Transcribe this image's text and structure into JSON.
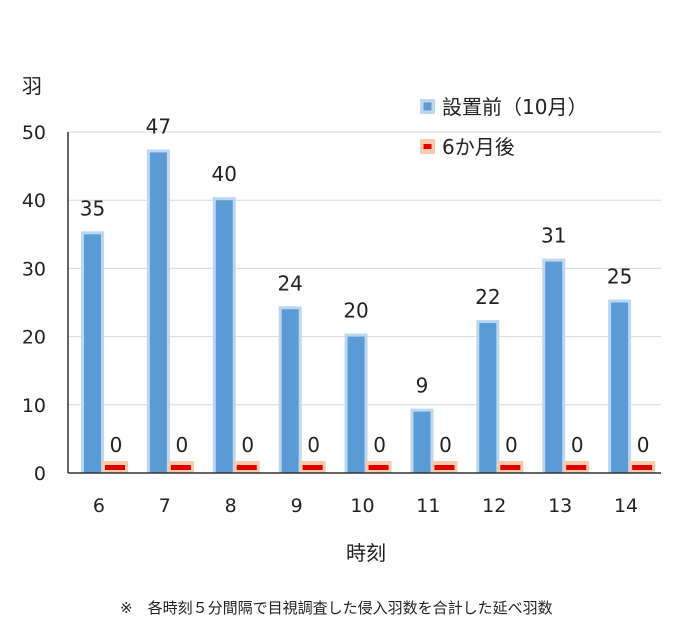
{
  "chart_data": {
    "type": "bar",
    "ylabel": "羽",
    "xlabel": "時刻",
    "categories": [
      "6",
      "7",
      "8",
      "9",
      "10",
      "11",
      "12",
      "13",
      "14"
    ],
    "ylim": [
      0,
      50
    ],
    "yticks": [
      0,
      10,
      20,
      30,
      40,
      50
    ],
    "grid": true,
    "legend_position": "top-right",
    "series": [
      {
        "name": "設置前（10月）",
        "values": [
          35,
          47,
          40,
          24,
          20,
          9,
          22,
          31,
          25
        ],
        "color": "#5b9bd5",
        "glow": "#bdd7ee"
      },
      {
        "name": "6か月後",
        "values": [
          0,
          0,
          0,
          0,
          0,
          0,
          0,
          0,
          0
        ],
        "color": "#e00000",
        "glow": "#f8cbad"
      }
    ],
    "note": "※　各時刻５分間隔で目視調査した侵入羽数を合計した延べ羽数"
  }
}
